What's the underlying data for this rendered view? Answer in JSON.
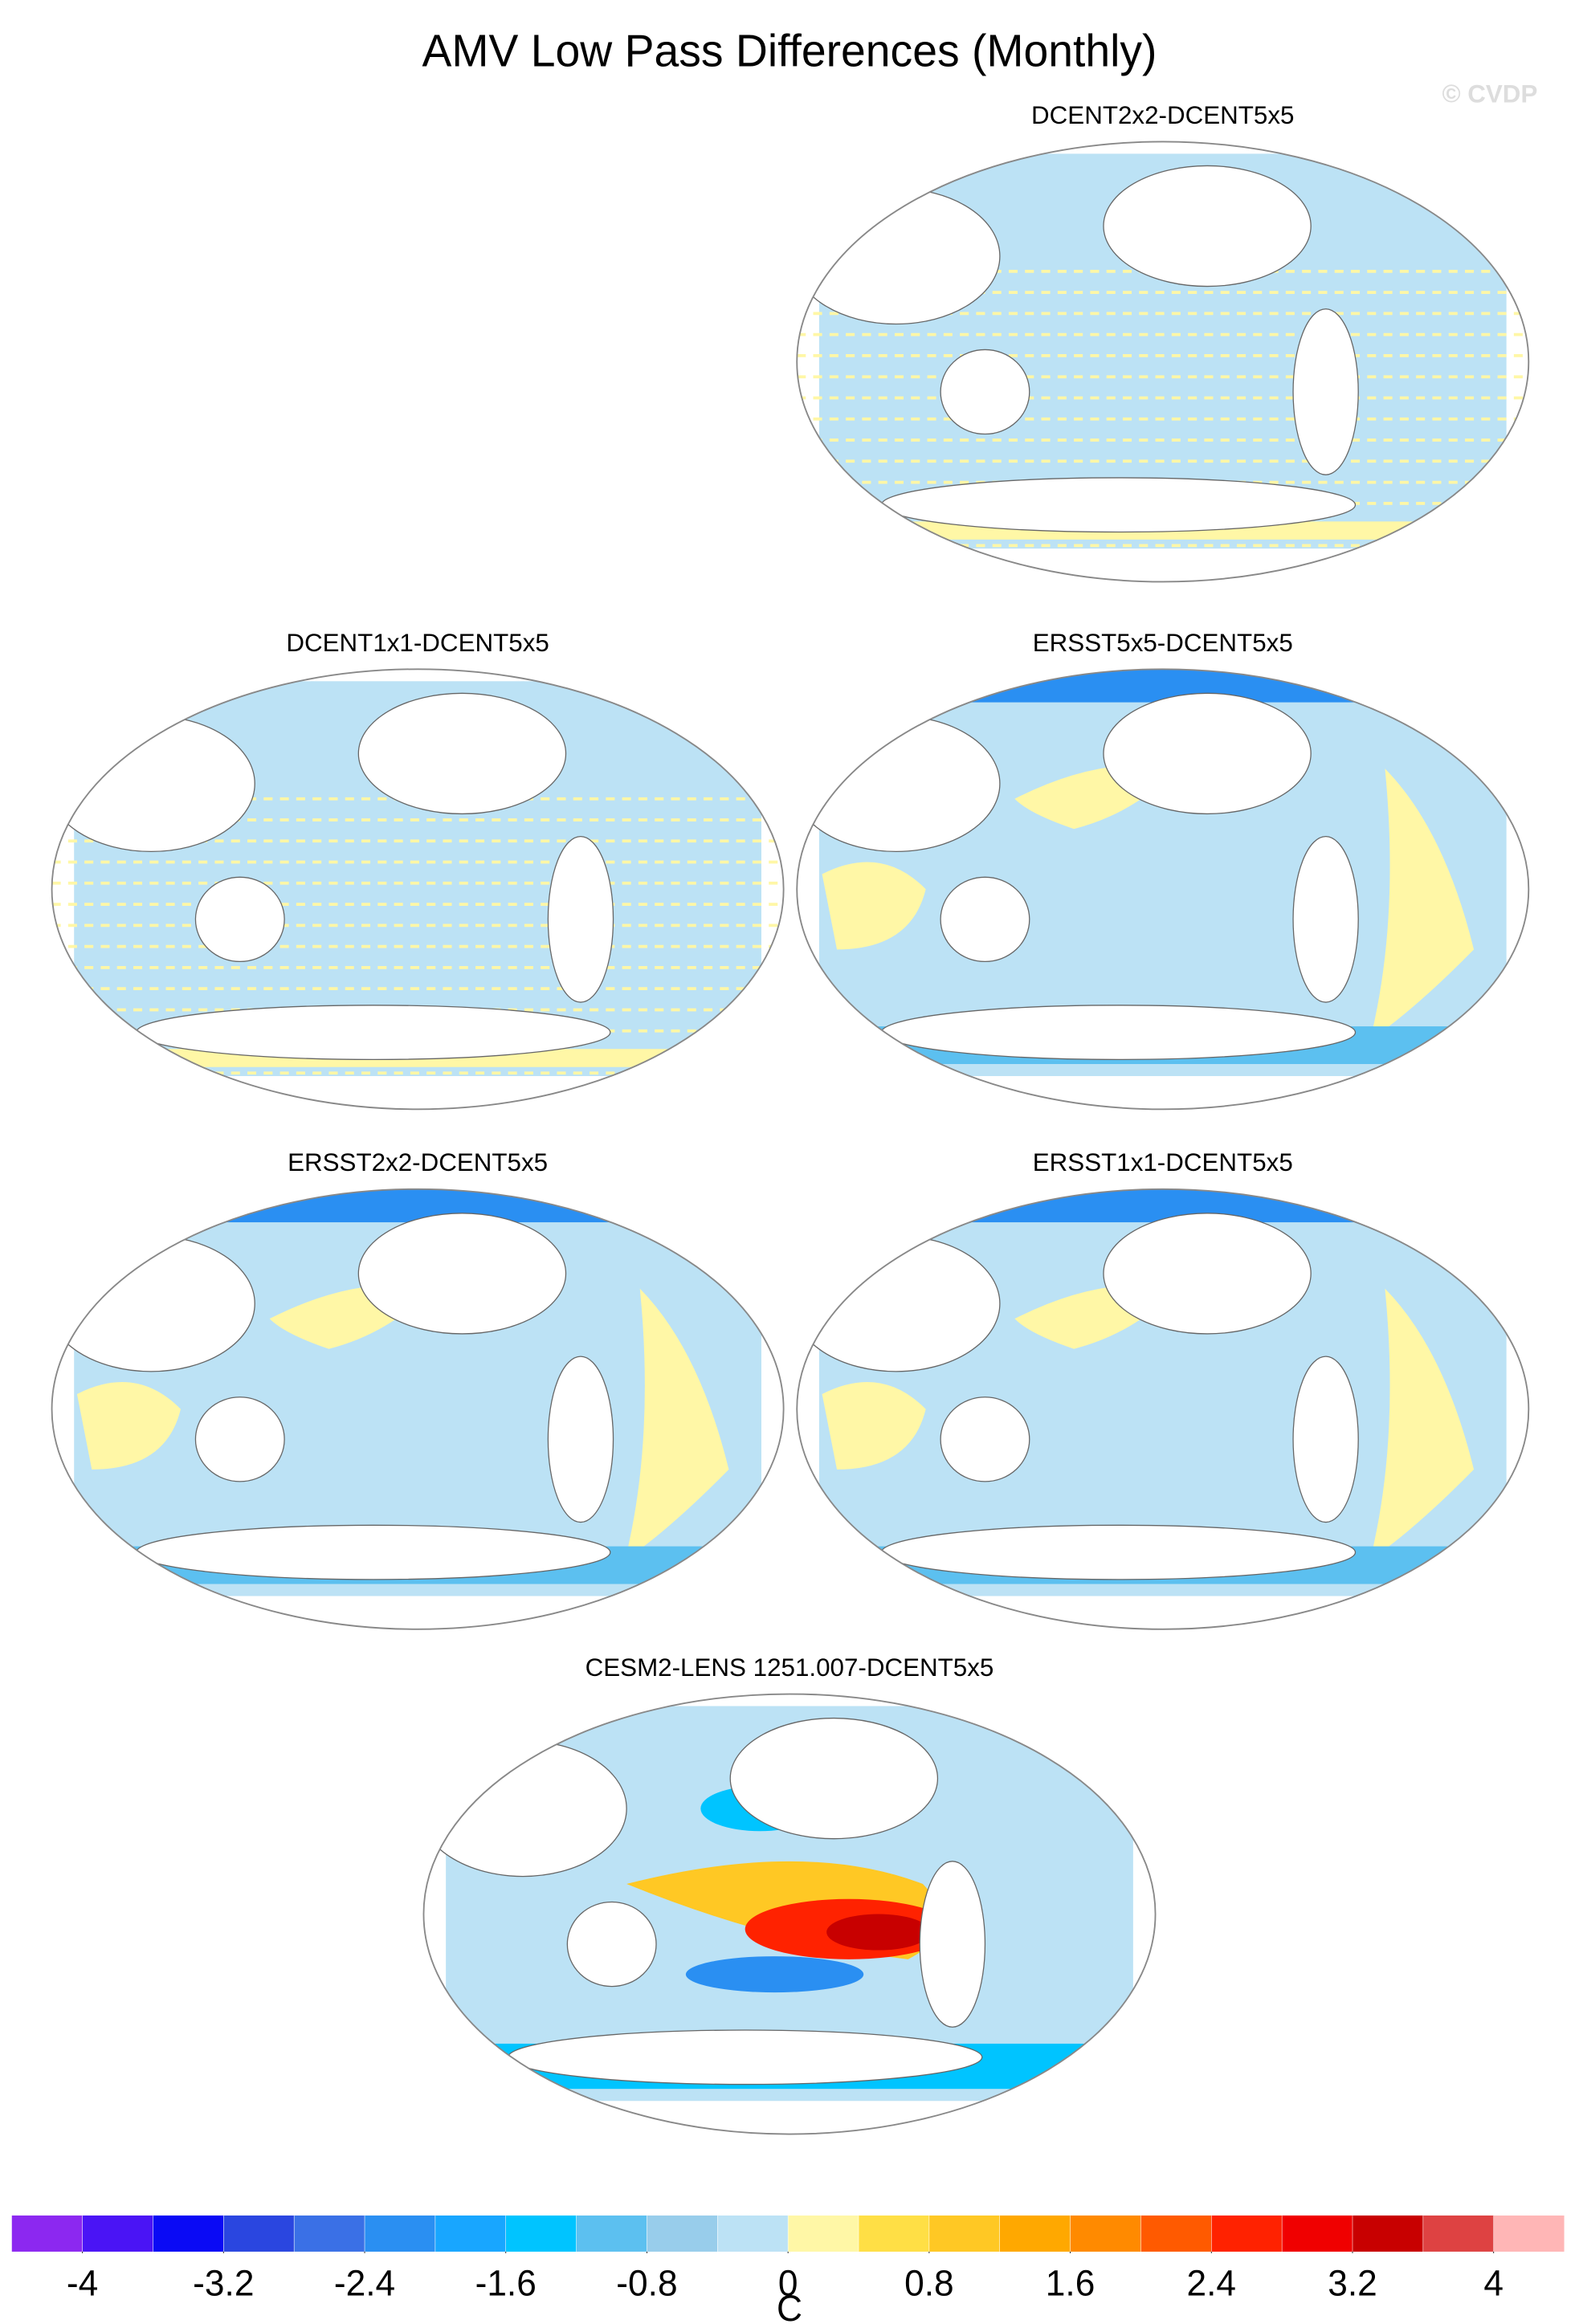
{
  "title": "AMV Low Pass Differences (Monthly)",
  "watermark": "© CVDP",
  "panels": [
    {
      "title": "DCENT2x2-DCENT5x5"
    },
    {
      "title": "DCENT1x1-DCENT5x5"
    },
    {
      "title": "ERSST5x5-DCENT5x5"
    },
    {
      "title": "ERSST2x2-DCENT5x5"
    },
    {
      "title": "ERSST1x1-DCENT5x5"
    },
    {
      "title": "CESM2-LENS 1251.007-DCENT5x5"
    }
  ],
  "chart_data": {
    "type": "colorbar",
    "units_label": "C",
    "xlim": [
      -4.4,
      4.4
    ],
    "levels": [
      -4,
      -3.6,
      -3.2,
      -2.8,
      -2.4,
      -2,
      -1.6,
      -1.2,
      -0.8,
      -0.4,
      0,
      0.4,
      0.8,
      1.2,
      1.6,
      2,
      2.4,
      2.8,
      3.2,
      3.6,
      4
    ],
    "xticks": [
      -4,
      -3.2,
      -2.4,
      -1.6,
      -0.8,
      0,
      0.8,
      1.6,
      2.4,
      3.2,
      4
    ],
    "colors": [
      "#8c28f0",
      "#4a14f5",
      "#0a0af5",
      "#2a46e0",
      "#3a70e6",
      "#2a8ff2",
      "#18a6ff",
      "#00c4ff",
      "#5cc0f0",
      "#98cdeb",
      "#bce2f5",
      "#fff7a6",
      "#ffdf45",
      "#ffc824",
      "#ffa800",
      "#ff8a00",
      "#ff5a00",
      "#ff2200",
      "#f00000",
      "#c80000",
      "#de4242",
      "#ffb6b6"
    ]
  }
}
